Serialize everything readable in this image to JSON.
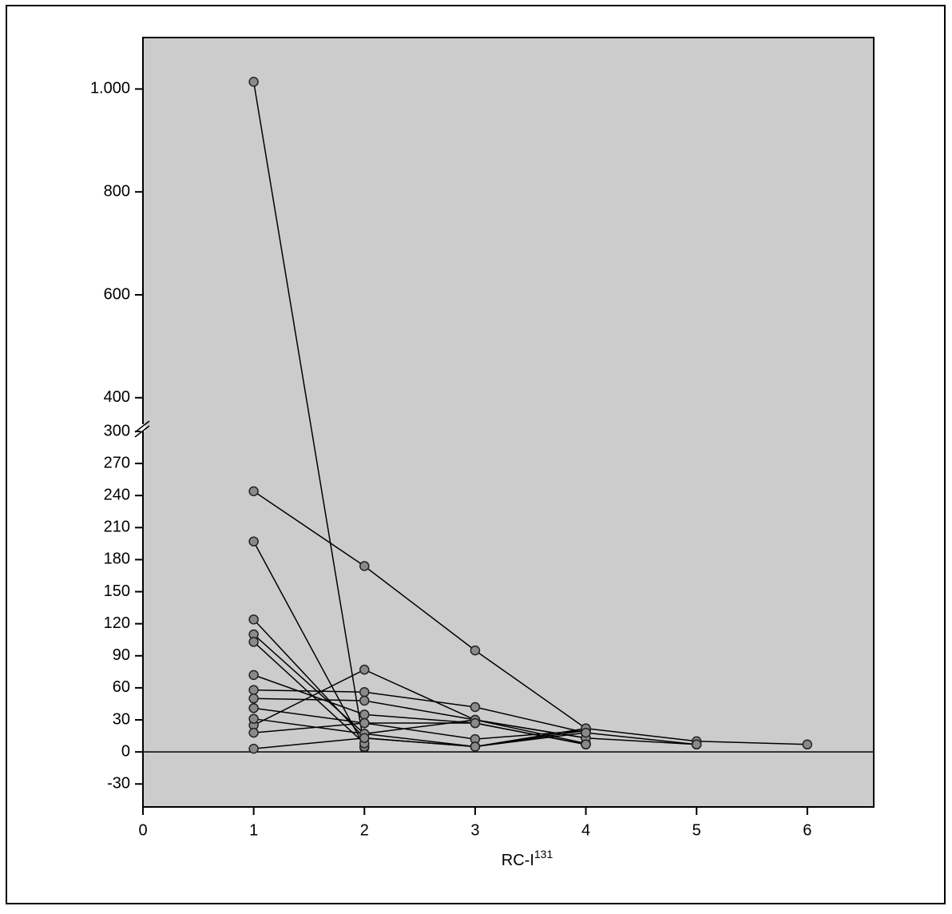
{
  "chart_data": {
    "type": "line",
    "x": [
      1,
      2,
      3,
      4,
      5,
      6
    ],
    "x_label": "RC-I",
    "x_label_sup": "131",
    "xlim": [
      0,
      6.6
    ],
    "xticks": [
      0,
      1,
      2,
      3,
      4,
      5,
      6
    ],
    "y_segments": [
      {
        "ylim": [
          -50,
          300
        ],
        "yticks": [
          -30,
          0,
          30,
          60,
          90,
          120,
          150,
          180,
          210,
          240,
          270,
          300
        ]
      },
      {
        "ylim": [
          350,
          1100
        ],
        "yticks": [
          400,
          600,
          800,
          {
            "value": 1000,
            "label": "1.000"
          }
        ]
      }
    ],
    "zero_line": true,
    "line_color": "#000000",
    "marker_color": "#8a8a8a",
    "background": "#cccccc",
    "series": [
      {
        "values": [
          1014,
          4,
          null,
          null,
          null,
          null
        ]
      },
      {
        "values": [
          244,
          174,
          95,
          22,
          10,
          7
        ]
      },
      {
        "values": [
          197,
          5,
          null,
          null,
          null,
          null
        ]
      },
      {
        "values": [
          124,
          13,
          5,
          20,
          null,
          null
        ]
      },
      {
        "values": [
          110,
          17,
          30,
          8,
          null,
          null
        ]
      },
      {
        "values": [
          103,
          8,
          null,
          null,
          null,
          null
        ]
      },
      {
        "values": [
          72,
          35,
          27,
          7,
          null,
          null
        ]
      },
      {
        "values": [
          58,
          56,
          42,
          18,
          7,
          null
        ]
      },
      {
        "values": [
          50,
          48,
          30,
          13,
          null,
          null
        ]
      },
      {
        "values": [
          41,
          27,
          12,
          20,
          null,
          null
        ]
      },
      {
        "values": [
          25,
          77,
          30,
          13,
          7,
          null
        ]
      },
      {
        "values": [
          31,
          17,
          5,
          22,
          null,
          null
        ]
      },
      {
        "values": [
          18,
          27,
          27,
          7,
          null,
          null
        ]
      },
      {
        "values": [
          3,
          13,
          5,
          18,
          null,
          null
        ]
      }
    ]
  }
}
